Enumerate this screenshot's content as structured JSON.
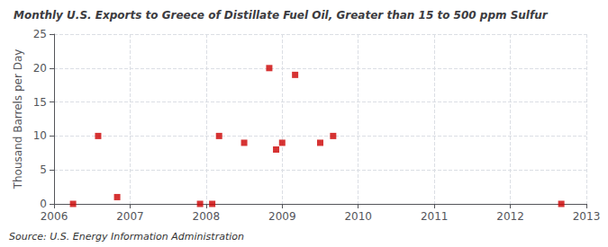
{
  "chart_data": {
    "type": "scatter",
    "title": "Monthly U.S. Exports to Greece of Distillate Fuel Oil, Greater than 15 to 500 ppm Sulfur",
    "ylabel": "Thousand Barrels per Day",
    "annotations": [
      "Source: U.S. Energy Information Administration"
    ],
    "x": [
      2006.25,
      2006.58,
      2006.83,
      2007.92,
      2008.08,
      2008.17,
      2008.5,
      2008.83,
      2008.92,
      2009.0,
      2009.17,
      2009.5,
      2009.67,
      2012.67
    ],
    "values": [
      0.0,
      10.0,
      1.0,
      0.0,
      0.0,
      10.0,
      9.0,
      20.0,
      8.0,
      9.0,
      19.0,
      9.0,
      10.0,
      0.0
    ],
    "color": "#cc0000",
    "marker": "square",
    "xlim": [
      2006.0,
      2013.0
    ],
    "xticks": [
      2006,
      2007,
      2008,
      2009,
      2010,
      2011,
      2012,
      2013
    ],
    "ylim": [
      0,
      25
    ],
    "yticks": [
      0,
      5,
      10,
      15,
      20,
      25
    ],
    "grid": true
  }
}
